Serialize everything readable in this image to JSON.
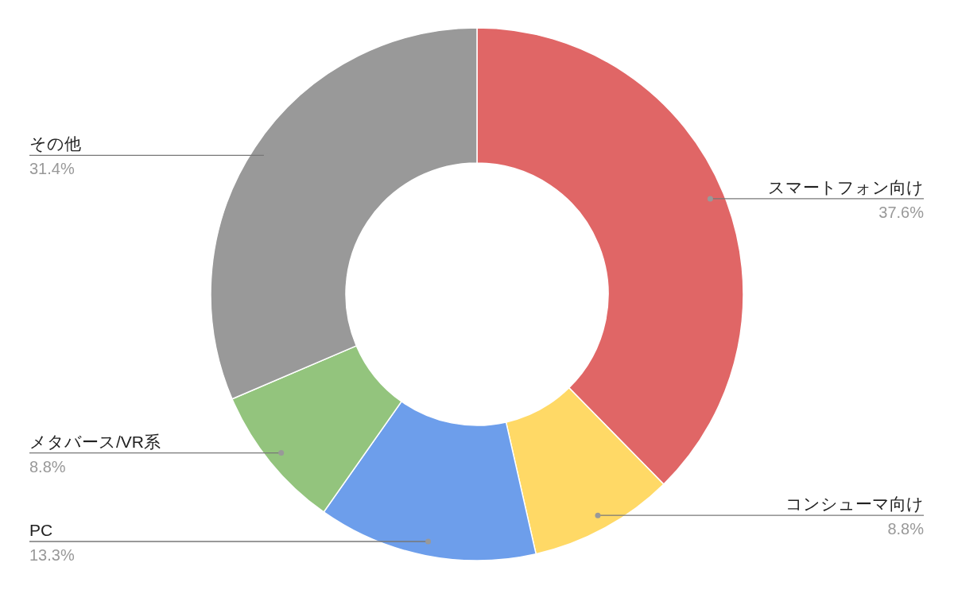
{
  "chart_data": {
    "type": "donut",
    "categories": [
      "スマートフォン向け",
      "コンシューマ向け",
      "PC",
      "メタバース/VR系",
      "その他"
    ],
    "values": [
      37.6,
      8.8,
      13.3,
      8.8,
      31.4
    ],
    "value_labels": [
      "37.6%",
      "8.8%",
      "13.3%",
      "8.8%",
      "31.4%"
    ],
    "colors": [
      "#e06666",
      "#ffd966",
      "#6d9eeb",
      "#93c47d",
      "#999999"
    ]
  }
}
